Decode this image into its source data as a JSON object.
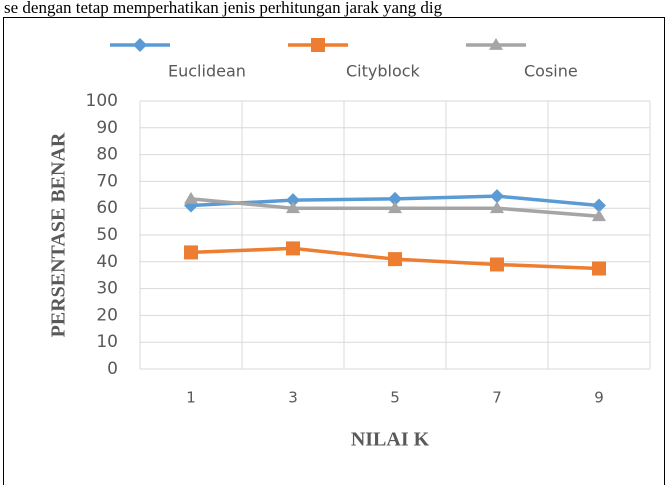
{
  "caption": "se dengan tetap memperhatikan jenis perhitungan jarak yang dig",
  "chart_data": {
    "type": "line",
    "categories": [
      "1",
      "3",
      "5",
      "7",
      "9"
    ],
    "series": [
      {
        "name": "Euclidean",
        "color": "#5b9bd5",
        "marker": "diamond",
        "values": [
          61,
          63,
          63.5,
          64.5,
          61
        ]
      },
      {
        "name": "Cityblock",
        "color": "#ed7d31",
        "marker": "square",
        "values": [
          43.5,
          45,
          41,
          39,
          37.5
        ]
      },
      {
        "name": "Cosine",
        "color": "#a5a5a5",
        "marker": "triangle",
        "values": [
          63.5,
          60,
          60,
          60,
          57
        ]
      }
    ],
    "xlabel": "NILAI K",
    "ylabel": "PERSENTASE BENAR",
    "ylim": [
      0,
      100
    ],
    "yticks": [
      0,
      10,
      20,
      30,
      40,
      50,
      60,
      70,
      80,
      90,
      100
    ],
    "grid": true,
    "legend": "top"
  }
}
